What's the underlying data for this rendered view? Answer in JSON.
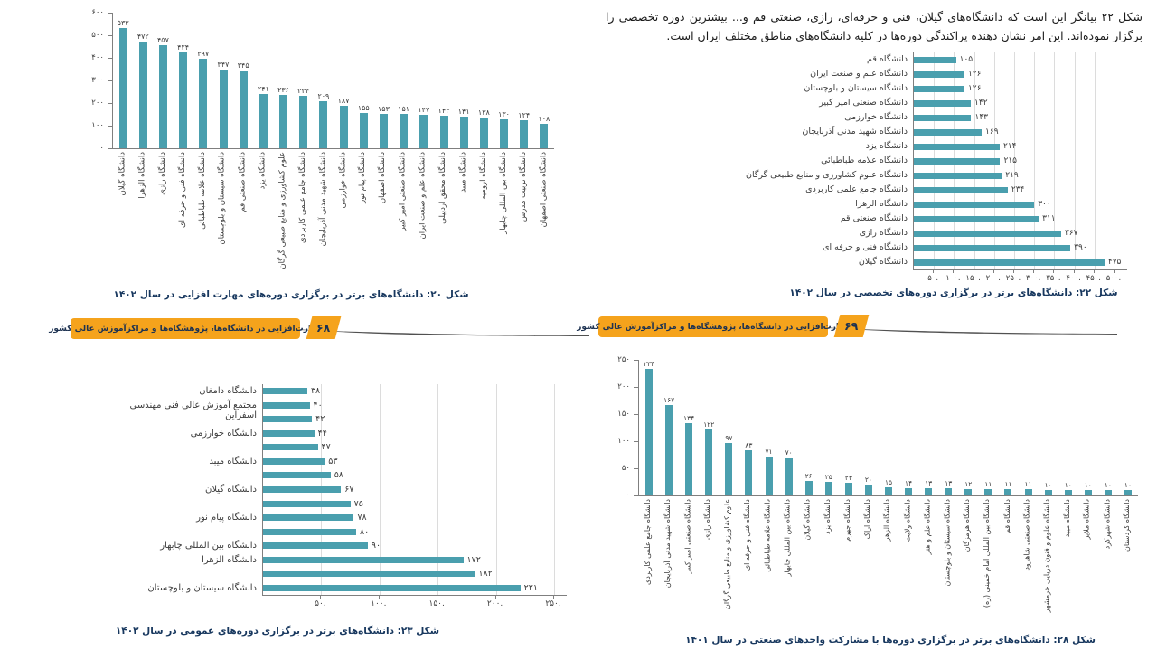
{
  "page": {
    "intro_text": "شکل ۲۲ بیانگر این است که دانشگاه‌های گیلان، فنی و حرفه‌ای، رازی، صنعتی قم و... بیشترین دوره تخصصی را برگزار نموده‌اند. این امر نشان دهنده پراکندگی دوره‌ها در کلیه دانشگاه‌های مناطق مختلف ایران است.",
    "banners": [
      {
        "label": "مهارت‌افزایی در دانشگاه‌ها، پژوهشگاه‌ها و مراکزآموزش عالی کشور",
        "page_number": "۶۸"
      },
      {
        "label": "مهارت‌افزایی در دانشگاه‌ها، پژوهشگاه‌ها و مراکزآموزش عالی کشور",
        "page_number": "۶۹"
      }
    ]
  },
  "colors": {
    "bar_teal": "#4a9fae",
    "banner_orange": "#F5A31C",
    "caption_navy": "#17375e",
    "swoosh_gray": "#515151",
    "axis_gray": "#7f7f7f",
    "gridline_gray": "#dcdcdc"
  },
  "chart_data": [
    {
      "id": "fig20",
      "type": "bar",
      "orientation": "vertical",
      "caption": "شکل ۲۰: دانشگاه‌های برتر در برگزاری دوره‌های مهارت افزایی در سال ۱۴۰۲",
      "ylim": [
        0,
        600
      ],
      "tick_values": [
        0,
        100,
        200,
        300,
        400,
        500,
        600
      ],
      "tick_labels": [
        "۰",
        "۱۰۰",
        "۲۰۰",
        "۳۰۰",
        "۴۰۰",
        "۵۰۰",
        "۶۰۰"
      ],
      "categories": [
        "دانشگاه گیلان",
        "دانشگاه الزهرا",
        "دانشگاه رازی",
        "دانشگاه فنی و حرفه ای",
        "دانشگاه علامه طباطبائی",
        "دانشگاه سیستان و بلوچستان",
        "دانشگاه صنعتی قم",
        "دانشگاه یزد",
        "علوم کشاورزی و منابع طبیعی گرگان",
        "دانشگاه جامع علمی کاربردی",
        "دانشگاه شهید مدنی آذربایجان",
        "دانشگاه خوارزمی",
        "دانشگاه پیام نور",
        "دانشگاه اصفهان",
        "دانشگاه صنعتی امیر کبیر",
        "دانشگاه علم و صنعت ایران",
        "دانشگاه محقق اردبیلی",
        "دانشگاه میبد",
        "دانشگاه ارومیه",
        "دانشگاه بین المللی چابهار",
        "دانشگاه تربیت مدرس",
        "دانشگاه صنعتی اصفهان"
      ],
      "values": [
        533,
        472,
        457,
        424,
        397,
        347,
        345,
        241,
        236,
        234,
        209,
        187,
        155,
        153,
        151,
        147,
        143,
        141,
        138,
        130,
        124,
        108
      ],
      "value_labels": [
        "۵۳۳",
        "۴۷۲",
        "۴۵۷",
        "۴۲۴",
        "۳۹۷",
        "۳۴۷",
        "۳۴۵",
        "۲۴۱",
        "۲۳۶",
        "۲۳۴",
        "۲۰۹",
        "۱۸۷",
        "۱۵۵",
        "۱۵۳",
        "۱۵۱",
        "۱۴۷",
        "۱۴۳",
        "۱۴۱",
        "۱۳۸",
        "۱۳۰",
        "۱۲۴",
        "۱۰۸"
      ]
    },
    {
      "id": "fig22",
      "type": "bar",
      "orientation": "horizontal",
      "caption": "شکل ۲۲: دانشگاه‌های برتر در برگزاری دوره‌های تخصصی در سال ۱۴۰۲",
      "xlim": [
        0,
        500
      ],
      "tick_values": [
        50,
        100,
        150,
        200,
        250,
        300,
        350,
        400,
        450,
        500
      ],
      "tick_labels": [
        "۵۰.",
        "۱۰۰.",
        "۱۵۰.",
        "۲۰۰.",
        "۲۵۰.",
        "۳۰۰.",
        "۳۵۰.",
        "۴۰۰.",
        "۴۵۰.",
        "۵۰۰."
      ],
      "categories": [
        "دانشگاه قم",
        "دانشگاه علم و صنعت ایران",
        "دانشگاه سیستان و بلوچستان",
        "دانشگاه صنعتی امیر کبیر",
        "دانشگاه خوارزمی",
        "دانشگاه شهید مدنی آذربایجان",
        "دانشگاه یزد",
        "دانشگاه علامه طباطبائی",
        "دانشگاه علوم کشاورزی و منابع طبیعی گرگان",
        "دانشگاه جامع علمی کاربردی",
        "دانشگاه الزهرا",
        "دانشگاه صنعتی قم",
        "دانشگاه رازی",
        "دانشگاه فنی و حرفه ای",
        "دانشگاه گیلان"
      ],
      "values": [
        105,
        126,
        126,
        142,
        143,
        169,
        214,
        215,
        219,
        234,
        300,
        311,
        367,
        390,
        475
      ],
      "value_labels": [
        "۱۰۵",
        "۱۲۶",
        "۱۲۶",
        "۱۴۲",
        "۱۴۳",
        "۱۶۹",
        "۲۱۴",
        "۲۱۵",
        "۲۱۹",
        "۲۳۴",
        "۳۰۰",
        "۳۱۱",
        "۳۶۷",
        "۳۹۰",
        "۴۷۵"
      ]
    },
    {
      "id": "fig23",
      "type": "bar",
      "orientation": "horizontal",
      "caption": "شکل ۲۳: دانشگاه‌های برتر در برگزاری دوره‌های عمومی در سال ۱۴۰۲",
      "xlim": [
        0,
        250
      ],
      "tick_values": [
        50,
        100,
        150,
        200,
        250
      ],
      "tick_labels": [
        "۵۰.",
        "۱۰۰.",
        "۱۵۰.",
        "۲۰۰.",
        "۲۵۰."
      ],
      "categories": [
        "دانشگاه دامغان",
        "مجتمع آموزش عالی فنی مهندسی اسفراین",
        "",
        "دانشگاه خوارزمی",
        "",
        "دانشگاه میبد",
        "",
        "دانشگاه گیلان",
        "",
        "دانشگاه پیام نور",
        "",
        "دانشگاه بین المللی چابهار",
        "دانشگاه الزهرا",
        "",
        "دانشگاه سیستان و بلوچستان"
      ],
      "values": [
        38,
        40,
        42,
        44,
        47,
        53,
        58,
        67,
        75,
        78,
        80,
        90,
        172,
        182,
        221
      ],
      "value_labels": [
        "۳۸",
        "۴۰",
        "۴۲",
        "۴۴",
        "۴۷",
        "۵۳",
        "۵۸",
        "۶۷",
        "۷۵",
        "۷۸",
        "۸۰",
        "۹۰",
        "۱۷۲",
        "۱۸۲",
        "۲۲۱"
      ]
    },
    {
      "id": "fig28",
      "type": "bar",
      "orientation": "vertical",
      "caption": "شکل ۲۸: دانشگاه‌های برتر در برگزاری دوره‌ها با مشارکت واحدهای صنعتی در سال ۱۴۰۱",
      "ylim": [
        0,
        250
      ],
      "tick_values": [
        0,
        50,
        100,
        150,
        200,
        250
      ],
      "tick_labels": [
        "۰",
        "۵۰",
        "۱۰۰",
        "۱۵۰",
        "۲۰۰",
        "۲۵۰"
      ],
      "categories": [
        "دانشگاه جامع علمی کاربردی",
        "دانشگاه شهید مدنی آذربایجان",
        "دانشگاه صنعتی امیر کبیر",
        "دانشگاه رازی",
        "علوم کشاورزی و منابع طبیعی گرگان",
        "دانشگاه فنی و حرفه ای",
        "دانشگاه علامه طباطبائی",
        "دانشگاه بین المللی چابهار",
        "دانشگاه گیلان",
        "دانشگاه یزد",
        "دانشگاه جهرم",
        "دانشگاه اراک",
        "دانشگاه الزهرا",
        "دانشگاه ولایت",
        "دانشگاه علم و هنر",
        "دانشگاه سیستان و بلوچستان",
        "دانشگاه هرمزگان",
        "دانشگاه بین المللی امام خمینی (ره)",
        "دانشگاه قم",
        "دانشگاه صنعتی شاهرود",
        "دانشگاه علوم و فنون دریایی خرمشهر",
        "دانشگاه میبد",
        "دانشگاه ملایر",
        "دانشگاه شهرکرد",
        "دانشگاه کردستان"
      ],
      "values": [
        234,
        167,
        134,
        122,
        97,
        83,
        71,
        70,
        26,
        25,
        23,
        20,
        15,
        14,
        13,
        13,
        12,
        11,
        11,
        11,
        10,
        10,
        10,
        10,
        10
      ],
      "value_labels": [
        "۲۳۴",
        "۱۶۷",
        "۱۳۴",
        "۱۲۲",
        "۹۷",
        "۸۳",
        "۷۱",
        "۷۰",
        "۲۶",
        "۲۵",
        "۲۳",
        "۲۰",
        "۱۵",
        "۱۴",
        "۱۳",
        "۱۳",
        "۱۲",
        "۱۱",
        "۱۱",
        "۱۱",
        "۱۰",
        "۱۰",
        "۱۰",
        "۱۰",
        "۱۰"
      ]
    }
  ]
}
